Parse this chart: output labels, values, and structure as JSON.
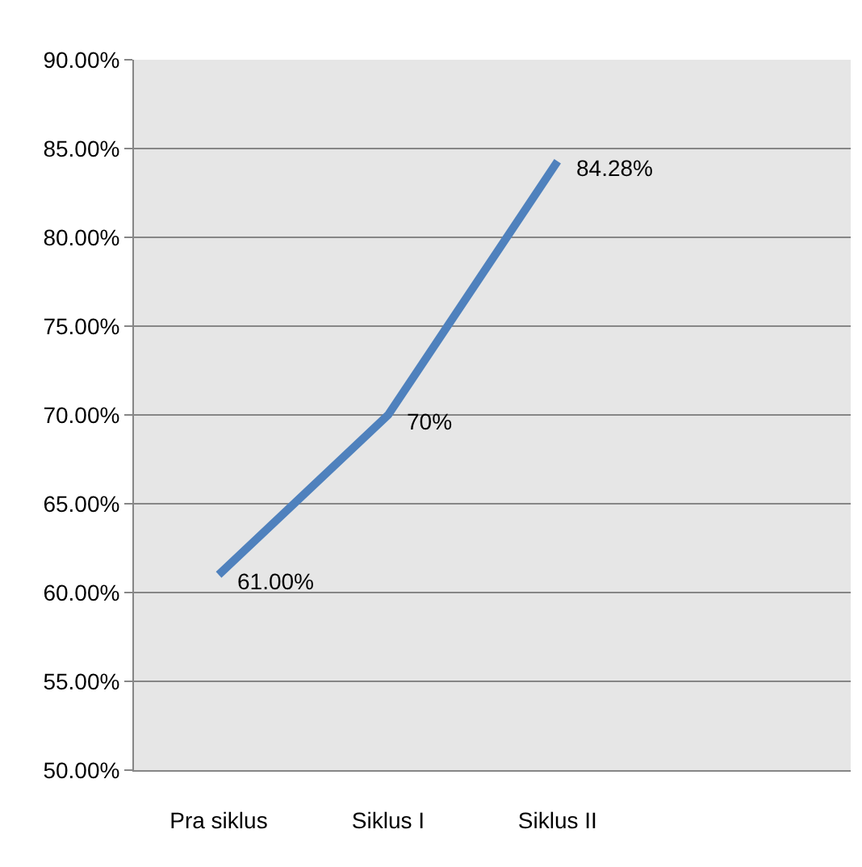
{
  "chart_data": {
    "type": "line",
    "categories": [
      "Pra siklus",
      "Siklus I",
      "Siklus II"
    ],
    "series": [
      {
        "color": "#4f81bd",
        "values": [
          61,
          70,
          84.28
        ],
        "value_labels": [
          "61.00%",
          "70%",
          "84.28%"
        ]
      }
    ],
    "ylim": [
      50,
      90
    ],
    "yticks": [
      {
        "value": 50,
        "label": "50.00%"
      },
      {
        "value": 55,
        "label": "55.00%"
      },
      {
        "value": 60,
        "label": "60.00%"
      },
      {
        "value": 65,
        "label": "65.00%"
      },
      {
        "value": 70,
        "label": "70.00%"
      },
      {
        "value": 75,
        "label": "75.00%"
      },
      {
        "value": 80,
        "label": "80.00%"
      },
      {
        "value": 85,
        "label": "85.00%"
      },
      {
        "value": 90,
        "label": "90.00%"
      }
    ],
    "grid": "y",
    "marker": "none",
    "line_style": "solid"
  }
}
